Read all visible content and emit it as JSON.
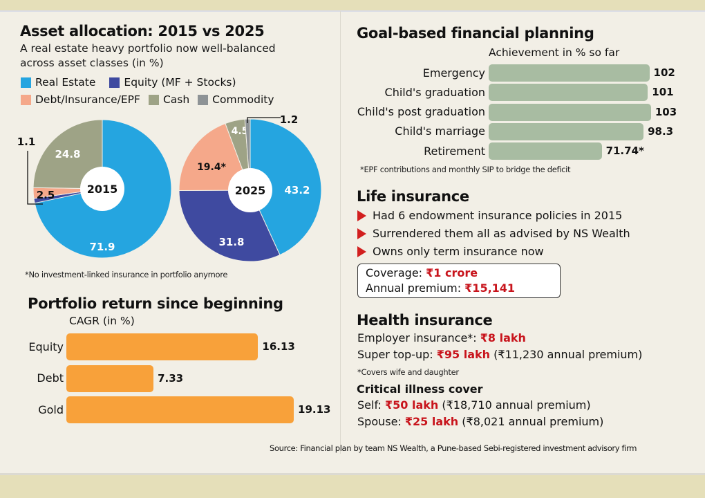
{
  "colors": {
    "real_estate": "#25a5e0",
    "equity": "#3f4aa0",
    "debt": "#f5a88a",
    "cash": "#9ea386",
    "commodity": "#8e9396",
    "cagr_bar": "#f8a13a",
    "goal_bar": "#a8bca2",
    "accent_red": "#c8141c",
    "bullet_red": "#d21f1f"
  },
  "asset_allocation": {
    "title": "Asset allocation: 2015 vs 2025",
    "subtitle_line1": "A real estate heavy portfolio now well-balanced",
    "subtitle_line2": "across asset classes (in %)",
    "legend": [
      {
        "label": "Real Estate",
        "color_key": "real_estate"
      },
      {
        "label": "Equity (MF + Stocks)",
        "color_key": "equity"
      },
      {
        "label": "Debt/Insurance/EPF",
        "color_key": "debt"
      },
      {
        "label": "Cash",
        "color_key": "cash"
      },
      {
        "label": "Commodity",
        "color_key": "commodity"
      }
    ],
    "footnote": "*No investment-linked insurance in portfolio anymore"
  },
  "goal_planning": {
    "title": "Goal-based financial planning",
    "footnote": "*EPF contributions and monthly SIP to bridge the deficit"
  },
  "life_insurance": {
    "title": "Life insurance",
    "bullets": [
      "Had 6 endowment insurance policies in 2015",
      "Surrendered them all as advised by NS Wealth",
      "Owns only term insurance now"
    ],
    "coverage_label": "Coverage: ",
    "coverage_value": "₹1 crore",
    "premium_label": "Annual premium: ",
    "premium_value": "₹15,141"
  },
  "health_insurance": {
    "title": "Health insurance",
    "employer_label": "Employer insurance*: ",
    "employer_value": "₹8 lakh",
    "topup_label": "Super top-up: ",
    "topup_value": "₹95 lakh",
    "topup_premium": " (₹11,230 annual premium)",
    "footnote": "*Covers wife and daughter",
    "critical_title": "Critical illness cover",
    "self_label": "Self: ",
    "self_value": "₹50 lakh",
    "self_premium": " (₹18,710 annual premium)",
    "spouse_label": "Spouse: ",
    "spouse_value": "₹25 lakh",
    "spouse_premium": " (₹8,021 annual premium)"
  },
  "source": "Source: Financial plan by team NS Wealth, a Pune-based Sebi-registered investment advisory firm",
  "chart_data": [
    {
      "type": "pie",
      "title": "2015",
      "center_label": "2015",
      "slices": [
        {
          "name": "Real Estate",
          "value": 71.9,
          "label": "71.9",
          "color_key": "real_estate"
        },
        {
          "name": "Equity (MF + Stocks)",
          "value": 1.1,
          "label": "1.1",
          "color_key": "equity"
        },
        {
          "name": "Debt/Insurance/EPF",
          "value": 2.5,
          "label": "2.5",
          "color_key": "debt"
        },
        {
          "name": "Cash",
          "value": 24.8,
          "label": "24.8",
          "color_key": "cash"
        }
      ]
    },
    {
      "type": "pie",
      "title": "2025",
      "center_label": "2025",
      "slices": [
        {
          "name": "Real Estate",
          "value": 43.2,
          "label": "43.2",
          "color_key": "real_estate"
        },
        {
          "name": "Equity (MF + Stocks)",
          "value": 31.8,
          "label": "31.8",
          "color_key": "equity"
        },
        {
          "name": "Debt/Insurance/EPF",
          "value": 19.4,
          "label": "19.4*",
          "color_key": "debt"
        },
        {
          "name": "Cash",
          "value": 4.5,
          "label": "4.5",
          "color_key": "cash"
        },
        {
          "name": "Commodity",
          "value": 1.2,
          "label": "1.2",
          "color_key": "commodity"
        }
      ]
    },
    {
      "type": "bar",
      "title": "Portfolio return since beginning",
      "xlabel": "CAGR (in %)",
      "ylabel": "",
      "categories": [
        "Equity",
        "Debt",
        "Gold"
      ],
      "values": [
        16.13,
        7.33,
        19.13
      ],
      "value_labels": [
        "16.13",
        "7.33",
        "19.13"
      ],
      "orientation": "horizontal"
    },
    {
      "type": "bar",
      "title": "Goal-based financial planning",
      "xlabel": "Achievement in % so far",
      "ylabel": "",
      "categories": [
        "Emergency",
        "Child's graduation",
        "Child's post graduation",
        "Child's marriage",
        "Retirement"
      ],
      "values": [
        102,
        101,
        103,
        98.3,
        71.74
      ],
      "value_labels": [
        "102",
        "101",
        "103",
        "98.3",
        "71.74*"
      ],
      "orientation": "horizontal"
    }
  ]
}
